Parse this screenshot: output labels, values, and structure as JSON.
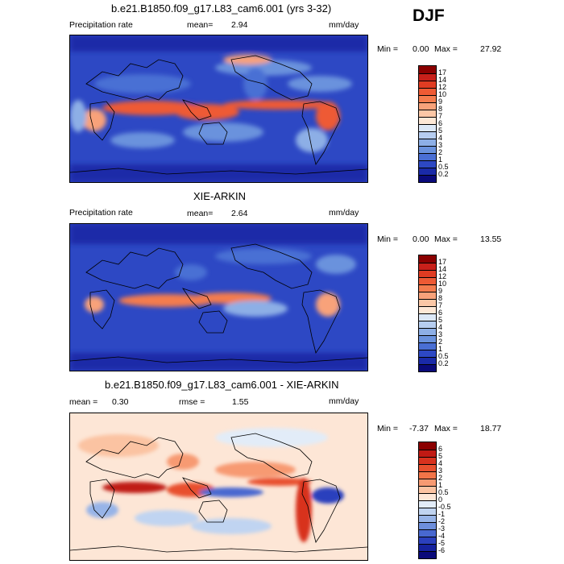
{
  "season": "DJF",
  "panels": [
    {
      "title": "b.e21.B1850.f09_g17.L83_cam6.001 (yrs 3-32)",
      "left_label": "Precipitation rate",
      "mean_label": "mean=",
      "mean_value": "2.94",
      "units": "mm/day",
      "min_label": "Min =",
      "min_value": "0.00",
      "max_label": "Max =",
      "max_value": "27.92",
      "colorbar": {
        "levels": [
          "17",
          "14",
          "12",
          "10",
          "9",
          "8",
          "7",
          "6",
          "5",
          "4",
          "3",
          "2",
          "1",
          "0.5",
          "0.2"
        ],
        "colors": [
          "#8b0000",
          "#c8201a",
          "#e03c22",
          "#ee5a34",
          "#f47c4e",
          "#f8a27a",
          "#fbc7a6",
          "#fde8d6",
          "#dce8f7",
          "#b6cdf0",
          "#8dafe6",
          "#6a92dd",
          "#4a6fd4",
          "#2d48c4",
          "#1a2aa8",
          "#0a0a7a"
        ]
      }
    },
    {
      "title": "XIE-ARKIN",
      "left_label": "Precipitation rate",
      "mean_label": "mean=",
      "mean_value": "2.64",
      "units": "mm/day",
      "min_label": "Min =",
      "min_value": "0.00",
      "max_label": "Max =",
      "max_value": "13.55",
      "colorbar": {
        "levels": [
          "17",
          "14",
          "12",
          "10",
          "9",
          "8",
          "7",
          "6",
          "5",
          "4",
          "3",
          "2",
          "1",
          "0.5",
          "0.2"
        ],
        "colors": [
          "#8b0000",
          "#c8201a",
          "#e03c22",
          "#ee5a34",
          "#f47c4e",
          "#f8a27a",
          "#fbc7a6",
          "#fde8d6",
          "#dce8f7",
          "#b6cdf0",
          "#8dafe6",
          "#6a92dd",
          "#4a6fd4",
          "#2d48c4",
          "#1a2aa8",
          "#0a0a7a"
        ]
      }
    },
    {
      "title": "b.e21.B1850.f09_g17.L83_cam6.001 - XIE-ARKIN",
      "left_label": "mean =",
      "mean_label": "",
      "mean_value": "0.30",
      "rmse_label": "rmse =",
      "rmse_value": "1.55",
      "units": "mm/day",
      "min_label": "Min =",
      "min_value": "-7.37",
      "max_label": "Max =",
      "max_value": "18.77",
      "colorbar": {
        "levels": [
          "6",
          "5",
          "4",
          "3",
          "2",
          "1",
          "0.5",
          "0",
          "-0.5",
          "-1",
          "-2",
          "-3",
          "-4",
          "-5",
          "-6"
        ],
        "colors": [
          "#8b0000",
          "#c01a14",
          "#d8321e",
          "#e8502e",
          "#f27448",
          "#f79a72",
          "#fbc3a2",
          "#fde6d6",
          "#e2ecf8",
          "#c0d4f1",
          "#97b4e8",
          "#6e8fdc",
          "#4868d0",
          "#2b40bd",
          "#16229e",
          "#0a0a7a"
        ]
      }
    }
  ]
}
